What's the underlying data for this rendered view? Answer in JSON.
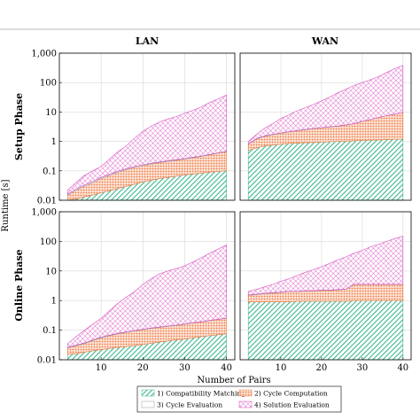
{
  "chart_data": {
    "type": "area",
    "columns": [
      "LAN",
      "WAN"
    ],
    "rows": [
      "Setup Phase",
      "Online Phase"
    ],
    "xlabel": "Number of Pairs",
    "ylabel": "Runtime [s]",
    "xlim": [
      0,
      42
    ],
    "ylim": [
      0.01,
      1000
    ],
    "yscale": "log",
    "x_ticks": [
      10,
      20,
      30,
      40
    ],
    "y_ticks": [
      {
        "value": 0.01,
        "label": "0.01"
      },
      {
        "value": 0.1,
        "label": "0.1"
      },
      {
        "value": 1,
        "label": "1"
      },
      {
        "value": 10,
        "label": "10"
      },
      {
        "value": 100,
        "label": "100"
      },
      {
        "value": 1000,
        "label": "1,000"
      }
    ],
    "grid": true,
    "legend_position": "bottom",
    "series_styles": [
      {
        "name": "1) Compatibility Matching",
        "color": "#3cb88e",
        "pattern": "diagonal-lines"
      },
      {
        "name": "2) Cycle Computation",
        "color": "#f07a45",
        "pattern": "dots"
      },
      {
        "name": "3) Cycle Evaluation",
        "color": "#9a9a9a",
        "pattern": "none"
      },
      {
        "name": "4) Solution Evaluation",
        "color": "#d94fc0",
        "pattern": "crosshatch"
      }
    ],
    "panels": [
      {
        "column": "LAN",
        "row": "Setup Phase",
        "x": [
          2,
          4,
          6,
          8,
          10,
          12,
          14,
          16,
          18,
          20,
          22,
          24,
          26,
          28,
          30,
          32,
          34,
          36,
          38,
          40
        ],
        "cumulative": [
          [
            0.01,
            0.011,
            0.013,
            0.015,
            0.018,
            0.021,
            0.025,
            0.03,
            0.035,
            0.042,
            0.048,
            0.055,
            0.06,
            0.066,
            0.072,
            0.078,
            0.084,
            0.09,
            0.095,
            0.1
          ],
          [
            0.015,
            0.022,
            0.03,
            0.04,
            0.055,
            0.07,
            0.09,
            0.11,
            0.13,
            0.15,
            0.17,
            0.19,
            0.21,
            0.23,
            0.25,
            0.28,
            0.31,
            0.35,
            0.4,
            0.45
          ],
          [
            0.016,
            0.024,
            0.033,
            0.044,
            0.06,
            0.076,
            0.097,
            0.118,
            0.14,
            0.16,
            0.18,
            0.2,
            0.22,
            0.24,
            0.26,
            0.29,
            0.32,
            0.36,
            0.41,
            0.46
          ],
          [
            0.02,
            0.035,
            0.06,
            0.09,
            0.12,
            0.2,
            0.35,
            0.55,
            1.0,
            1.6,
            2.5,
            3.5,
            4.5,
            5.5,
            7.0,
            9.0,
            12,
            17,
            24,
            30
          ]
        ],
        "upper": [
          0.022,
          0.04,
          0.07,
          0.1,
          0.14,
          0.25,
          0.45,
          0.7,
          1.3,
          2.2,
          3.3,
          4.6,
          5.8,
          7.0,
          9.0,
          11.5,
          15,
          21,
          28,
          38
        ]
      },
      {
        "column": "WAN",
        "row": "Setup Phase",
        "x": [
          2,
          4,
          6,
          8,
          10,
          12,
          14,
          16,
          18,
          20,
          22,
          24,
          26,
          28,
          30,
          32,
          34,
          36,
          38,
          40
        ],
        "cumulative": [
          [
            0.5,
            0.6,
            0.7,
            0.75,
            0.8,
            0.85,
            0.88,
            0.9,
            0.92,
            0.95,
            0.98,
            1.0,
            1.02,
            1.05,
            1.08,
            1.1,
            1.12,
            1.15,
            1.18,
            1.2
          ],
          [
            0.8,
            1.2,
            1.5,
            1.7,
            1.9,
            2.1,
            2.3,
            2.5,
            2.7,
            2.9,
            3.1,
            3.3,
            3.6,
            4.0,
            4.8,
            5.5,
            6.5,
            7.5,
            8.5,
            9.5
          ],
          [
            0.82,
            1.25,
            1.55,
            1.75,
            1.95,
            2.15,
            2.35,
            2.55,
            2.75,
            2.95,
            3.15,
            3.35,
            3.65,
            4.05,
            4.85,
            5.55,
            6.55,
            7.55,
            8.55,
            9.6
          ],
          [
            0.9,
            1.5,
            2.5,
            3.5,
            5.0,
            6.5,
            8.5,
            11,
            14,
            18,
            24,
            32,
            45,
            60,
            75,
            90,
            120,
            160,
            200,
            250
          ]
        ],
        "upper": [
          1.0,
          1.7,
          2.8,
          4.0,
          6.0,
          8.0,
          11,
          14,
          18,
          24,
          32,
          45,
          60,
          80,
          100,
          125,
          160,
          220,
          300,
          380
        ]
      },
      {
        "column": "LAN",
        "row": "Online Phase",
        "x": [
          2,
          4,
          6,
          8,
          10,
          12,
          14,
          16,
          18,
          20,
          22,
          24,
          26,
          28,
          30,
          32,
          34,
          36,
          38,
          40
        ],
        "cumulative": [
          [
            0.015,
            0.016,
            0.018,
            0.02,
            0.022,
            0.024,
            0.026,
            0.028,
            0.03,
            0.033,
            0.036,
            0.04,
            0.043,
            0.047,
            0.05,
            0.055,
            0.06,
            0.065,
            0.07,
            0.075
          ],
          [
            0.025,
            0.03,
            0.035,
            0.045,
            0.055,
            0.065,
            0.075,
            0.085,
            0.095,
            0.105,
            0.115,
            0.125,
            0.135,
            0.145,
            0.16,
            0.175,
            0.19,
            0.21,
            0.23,
            0.25
          ],
          [
            0.026,
            0.031,
            0.037,
            0.047,
            0.058,
            0.068,
            0.078,
            0.088,
            0.098,
            0.108,
            0.118,
            0.128,
            0.138,
            0.148,
            0.163,
            0.178,
            0.193,
            0.213,
            0.233,
            0.253
          ],
          [
            0.03,
            0.05,
            0.08,
            0.12,
            0.18,
            0.3,
            0.5,
            0.8,
            1.2,
            2.0,
            3.0,
            4.0,
            5.0,
            6.0,
            7.0,
            9.0,
            11,
            13,
            16,
            20
          ]
        ],
        "upper": [
          0.035,
          0.06,
          0.1,
          0.16,
          0.25,
          0.45,
          0.8,
          1.3,
          2.0,
          3.5,
          5.5,
          8.0,
          10,
          12,
          15,
          20,
          28,
          40,
          55,
          75
        ]
      },
      {
        "column": "WAN",
        "row": "Online Phase",
        "x": [
          2,
          4,
          6,
          8,
          10,
          12,
          14,
          16,
          18,
          20,
          22,
          24,
          26,
          28,
          30,
          32,
          34,
          36,
          38,
          40
        ],
        "cumulative": [
          [
            0.9,
            0.9,
            0.9,
            0.9,
            0.9,
            0.9,
            0.95,
            0.95,
            0.95,
            0.95,
            0.95,
            0.95,
            0.95,
            1.0,
            1.0,
            1.0,
            1.0,
            1.0,
            1.0,
            1.0
          ],
          [
            1.5,
            1.6,
            1.7,
            1.8,
            1.9,
            2.0,
            2.0,
            2.1,
            2.1,
            2.2,
            2.2,
            2.3,
            2.4,
            3.5,
            3.5,
            3.5,
            3.5,
            3.5,
            3.5,
            3.5
          ],
          [
            1.55,
            1.65,
            1.75,
            1.85,
            1.95,
            2.05,
            2.05,
            2.15,
            2.15,
            2.25,
            2.25,
            2.35,
            2.45,
            3.55,
            3.55,
            3.55,
            3.55,
            3.55,
            3.55,
            3.55
          ],
          [
            1.6,
            1.8,
            2.0,
            2.2,
            2.5,
            2.8,
            3.2,
            3.7,
            4.3,
            5.0,
            6.0,
            7.0,
            8.5,
            10,
            12,
            14,
            17,
            20,
            24,
            28
          ]
        ],
        "upper": [
          2.0,
          2.4,
          2.9,
          3.5,
          4.5,
          5.5,
          7.0,
          9.0,
          11,
          14,
          18,
          24,
          30,
          40,
          50,
          65,
          80,
          100,
          125,
          150
        ]
      }
    ]
  }
}
